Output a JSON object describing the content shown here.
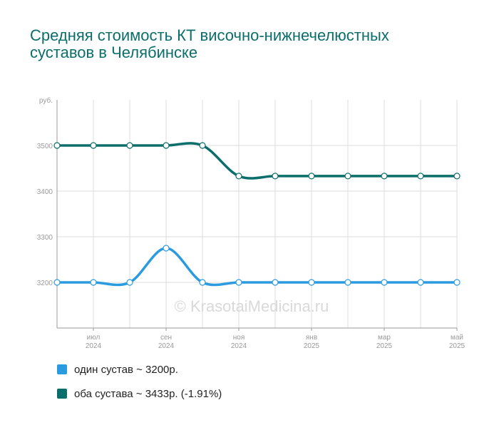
{
  "title": "Средняя стоимость КТ височно-нижнечелюстных суставов в Челябинске",
  "watermark": "© KrasotaiMedicina.ru",
  "chart_data": {
    "type": "line",
    "ylabel": "руб.",
    "ylim": [
      3100,
      3600
    ],
    "yticks": [
      3200,
      3300,
      3400,
      3500
    ],
    "grid": true,
    "x_labels": [
      {
        "month": "июл",
        "year": "2024",
        "index": 1
      },
      {
        "month": "сен",
        "year": "2024",
        "index": 3
      },
      {
        "month": "ноя",
        "year": "2024",
        "index": 5
      },
      {
        "month": "янв",
        "year": "2025",
        "index": 7
      },
      {
        "month": "мар",
        "year": "2025",
        "index": 9
      },
      {
        "month": "май",
        "year": "2025",
        "index": 11
      }
    ],
    "x": [
      "2024-06",
      "2024-07",
      "2024-08",
      "2024-09",
      "2024-10",
      "2024-11",
      "2024-12",
      "2025-01",
      "2025-02",
      "2025-03",
      "2025-04",
      "2025-05"
    ],
    "series": [
      {
        "name": "один сустав ~ 3200р.",
        "color": "#2b9be0",
        "values": [
          3200,
          3200,
          3200,
          3275,
          3200,
          3200,
          3200,
          3200,
          3200,
          3200,
          3200,
          3200
        ]
      },
      {
        "name": "оба сустава ~ 3433р. (-1.91%)",
        "color": "#0b6e6b",
        "values": [
          3500,
          3500,
          3500,
          3500,
          3500,
          3433,
          3433,
          3433,
          3433,
          3433,
          3433,
          3433
        ]
      }
    ]
  }
}
